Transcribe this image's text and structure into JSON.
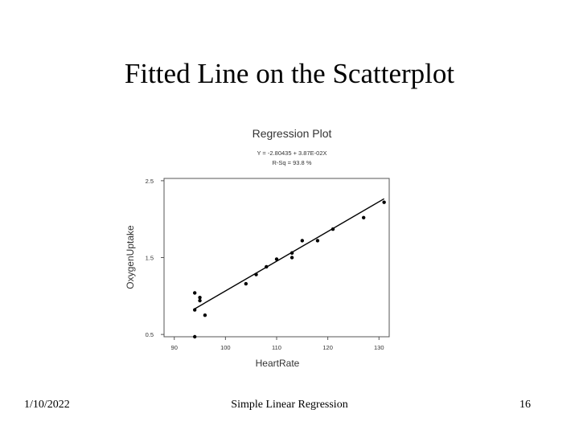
{
  "slide": {
    "title": "Fitted Line on the Scatterplot",
    "footer_date": "1/10/2022",
    "footer_center": "Simple Linear Regression",
    "page_number": "16"
  },
  "chart_data": {
    "type": "scatter",
    "title": "Regression Plot",
    "equation": "Y = -2.80435 + 3.87E-02X",
    "rsq": "R-Sq = 93.8 %",
    "xlabel": "HeartRate",
    "ylabel": "OxygenUptake",
    "xlim": [
      88,
      132
    ],
    "ylim": [
      0.47,
      2.53
    ],
    "xticks": [
      90,
      100,
      110,
      120,
      130
    ],
    "yticks": [
      0.5,
      1.5,
      2.5
    ],
    "xtick_labels": [
      "90",
      "100",
      "110",
      "120",
      "130"
    ],
    "ytick_labels": [
      "0.5",
      "1.5",
      "2.5"
    ],
    "grid": false,
    "point_color": "#000000",
    "line_color": "#000000",
    "points": [
      {
        "x": 94,
        "y": 1.04
      },
      {
        "x": 94,
        "y": 0.82
      },
      {
        "x": 94,
        "y": 0.47
      },
      {
        "x": 95,
        "y": 0.98
      },
      {
        "x": 95,
        "y": 0.94
      },
      {
        "x": 96,
        "y": 0.75
      },
      {
        "x": 104,
        "y": 1.16
      },
      {
        "x": 106,
        "y": 1.28
      },
      {
        "x": 108,
        "y": 1.38
      },
      {
        "x": 110,
        "y": 1.48
      },
      {
        "x": 113,
        "y": 1.56
      },
      {
        "x": 113,
        "y": 1.5
      },
      {
        "x": 115,
        "y": 1.72
      },
      {
        "x": 118,
        "y": 1.72
      },
      {
        "x": 121,
        "y": 1.87
      },
      {
        "x": 127,
        "y": 2.02
      },
      {
        "x": 131,
        "y": 2.22
      }
    ],
    "fit": {
      "intercept": -2.80435,
      "slope": 0.0387,
      "x_range": [
        94,
        131
      ]
    }
  }
}
